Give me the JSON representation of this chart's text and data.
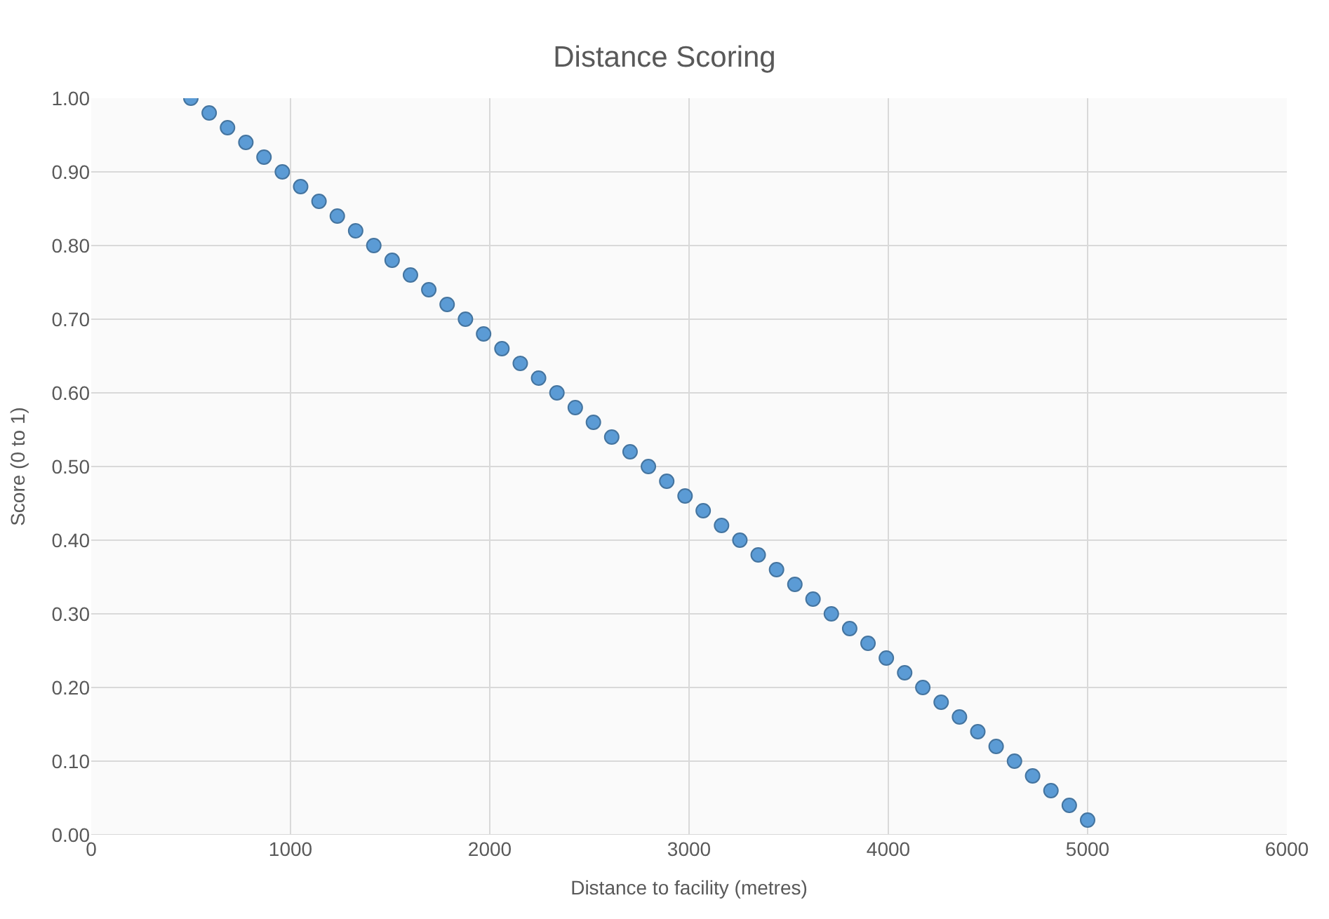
{
  "chart_data": {
    "type": "scatter",
    "title": "Distance Scoring",
    "xlabel": "Distance to facility (metres)",
    "ylabel": "Score (0 to 1)",
    "x": [
      500,
      592,
      684,
      776,
      867,
      959,
      1051,
      1143,
      1235,
      1327,
      1418,
      1510,
      1602,
      1694,
      1786,
      1878,
      1969,
      2061,
      2153,
      2245,
      2337,
      2429,
      2520,
      2612,
      2704,
      2796,
      2888,
      2980,
      3071,
      3163,
      3255,
      3347,
      3439,
      3531,
      3622,
      3714,
      3806,
      3898,
      3990,
      4082,
      4173,
      4265,
      4357,
      4449,
      4541,
      4633,
      4724,
      4816,
      4908,
      5000
    ],
    "series": [
      {
        "color": "#5b9bd5",
        "values": [
          1.0,
          0.98,
          0.96,
          0.94,
          0.92,
          0.9,
          0.88,
          0.86,
          0.84,
          0.82,
          0.8,
          0.78,
          0.76,
          0.74,
          0.72,
          0.7,
          0.68,
          0.66,
          0.64,
          0.62,
          0.6,
          0.58,
          0.56,
          0.54,
          0.52,
          0.5,
          0.48,
          0.46,
          0.44,
          0.42,
          0.4,
          0.38,
          0.36,
          0.34,
          0.32,
          0.3,
          0.28,
          0.26,
          0.24,
          0.22,
          0.2,
          0.18,
          0.16,
          0.14,
          0.12,
          0.1,
          0.08,
          0.06,
          0.04,
          0.02
        ]
      }
    ],
    "xlim": [
      0,
      6000
    ],
    "xticks": [
      0,
      1000,
      2000,
      3000,
      4000,
      5000,
      6000
    ],
    "ylim": [
      0,
      1
    ],
    "yticks": [
      {
        "value": 0,
        "label": "0.00"
      },
      {
        "value": 0.1,
        "label": "0.10"
      },
      {
        "value": 0.2,
        "label": "0.20"
      },
      {
        "value": 0.3,
        "label": "0.30"
      },
      {
        "value": 0.4,
        "label": "0.40"
      },
      {
        "value": 0.5,
        "label": "0.50"
      },
      {
        "value": 0.6,
        "label": "0.60"
      },
      {
        "value": 0.7,
        "label": "0.70"
      },
      {
        "value": 0.8,
        "label": "0.80"
      },
      {
        "value": 0.9,
        "label": "0.90"
      },
      {
        "value": 1,
        "label": "1.00"
      }
    ],
    "grid": true,
    "marker": "circle"
  }
}
